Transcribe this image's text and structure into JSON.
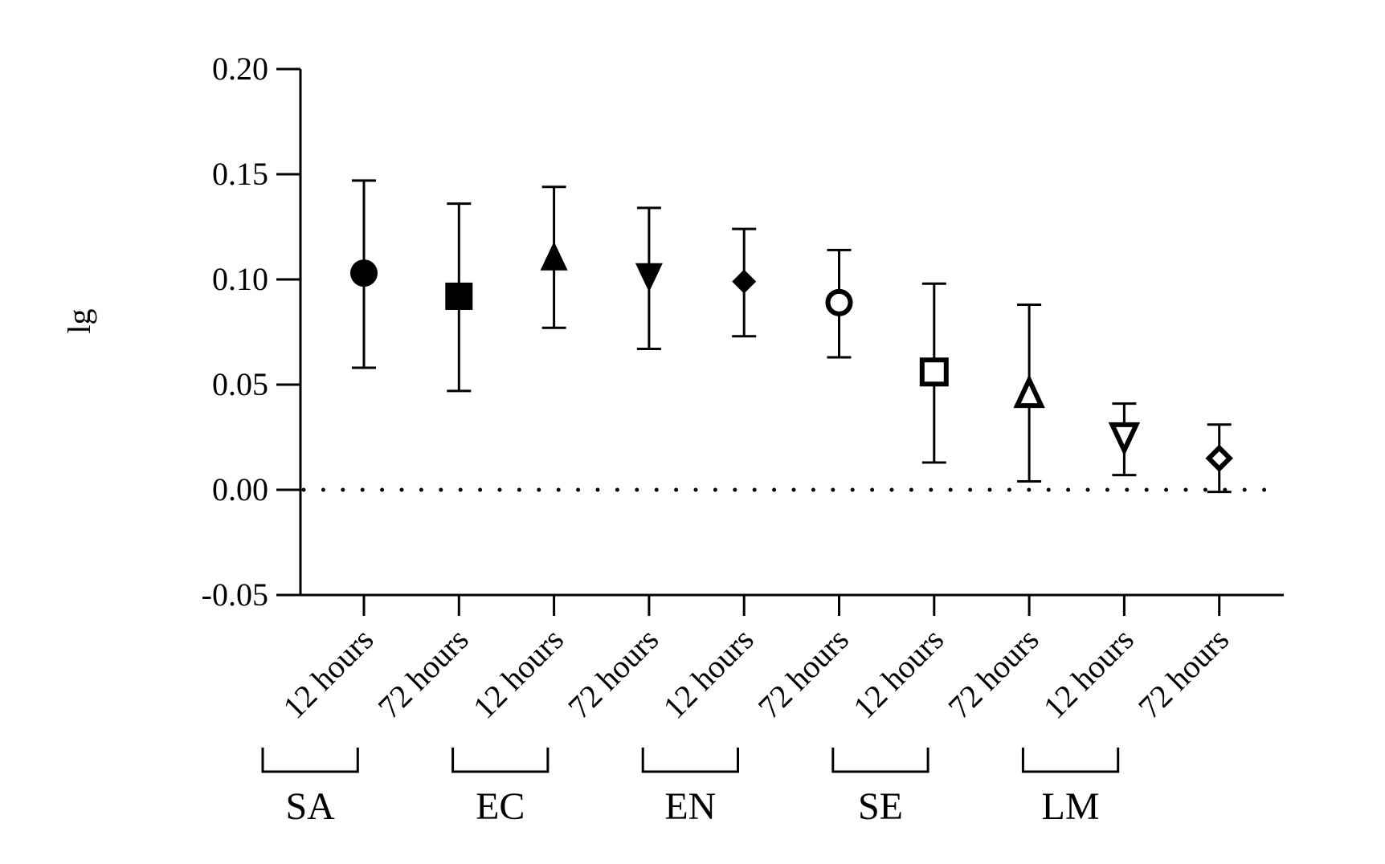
{
  "chart_data": {
    "type": "scatter",
    "subtype": "point-with-error-bars",
    "title": "",
    "xlabel": "",
    "ylabel": "lg",
    "ylim": [
      -0.05,
      0.2
    ],
    "yticks": [
      -0.05,
      0.0,
      0.05,
      0.1,
      0.15,
      0.2
    ],
    "ytick_labels": [
      "-0.05",
      "0.00",
      "0.05",
      "0.10",
      "0.15",
      "0.20"
    ],
    "reference_line": {
      "y": 0.0,
      "style": "dotted"
    },
    "categories": [
      "12 hours",
      "72 hours",
      "12 hours",
      "72 hours",
      "12 hours",
      "72 hours",
      "12 hours",
      "72 hours",
      "12 hours",
      "72 hours"
    ],
    "points": [
      {
        "label": "12 hours",
        "value": 0.103,
        "low": 0.058,
        "high": 0.147,
        "marker": "circle",
        "filled": true
      },
      {
        "label": "72 hours",
        "value": 0.092,
        "low": 0.047,
        "high": 0.136,
        "marker": "square",
        "filled": true
      },
      {
        "label": "12 hours",
        "value": 0.11,
        "low": 0.077,
        "high": 0.144,
        "marker": "triangle-up",
        "filled": true
      },
      {
        "label": "72 hours",
        "value": 0.102,
        "low": 0.067,
        "high": 0.134,
        "marker": "triangle-down",
        "filled": true
      },
      {
        "label": "12 hours",
        "value": 0.099,
        "low": 0.073,
        "high": 0.124,
        "marker": "diamond",
        "filled": true
      },
      {
        "label": "72 hours",
        "value": 0.089,
        "low": 0.063,
        "high": 0.114,
        "marker": "circle",
        "filled": false
      },
      {
        "label": "12 hours",
        "value": 0.056,
        "low": 0.013,
        "high": 0.098,
        "marker": "square",
        "filled": false
      },
      {
        "label": "72 hours",
        "value": 0.045,
        "low": 0.004,
        "high": 0.088,
        "marker": "triangle-up",
        "filled": false
      },
      {
        "label": "12 hours",
        "value": 0.026,
        "low": 0.007,
        "high": 0.041,
        "marker": "triangle-down",
        "filled": false
      },
      {
        "label": "72 hours",
        "value": 0.015,
        "low": -0.001,
        "high": 0.031,
        "marker": "diamond",
        "filled": false
      }
    ],
    "groups": [
      {
        "name": "SA",
        "from": 0,
        "to": 1
      },
      {
        "name": "EC",
        "from": 2,
        "to": 3
      },
      {
        "name": "EN",
        "from": 4,
        "to": 5
      },
      {
        "name": "SE",
        "from": 6,
        "to": 7
      },
      {
        "name": "LM",
        "from": 8,
        "to": 9
      }
    ]
  },
  "colors": {
    "ink": "#000000",
    "background": "#ffffff"
  }
}
